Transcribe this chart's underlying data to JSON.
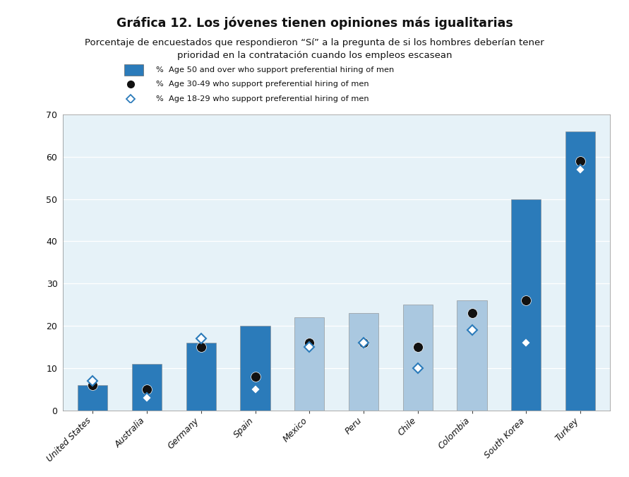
{
  "title": "Gráfica 12. Los jóvenes tienen opiniones más igualitarias",
  "subtitle_line1": "Porcentaje de encuestados que respondieron “Sí” a la pregunta de si los hombres deberían tener",
  "subtitle_line2": "prioridad en la contratación cuando los empleos escasean",
  "categories": [
    "United States",
    "Australia",
    "Germany",
    "Spain",
    "Mexico",
    "Peru",
    "Chile",
    "Colombia",
    "South Korea",
    "Turkey"
  ],
  "bar_values_50plus": [
    6,
    11,
    16,
    20,
    22,
    23,
    25,
    26,
    50,
    66
  ],
  "dot_values_3049": [
    6,
    5,
    15,
    8,
    16,
    16,
    15,
    23,
    26,
    59
  ],
  "diamond_values_1829": [
    7,
    3,
    17,
    5,
    15,
    16,
    10,
    19,
    16,
    57
  ],
  "bar_colors": [
    "#2b7bba",
    "#2b7bba",
    "#2b7bba",
    "#2b7bba",
    "#aac8e0",
    "#aac8e0",
    "#aac8e0",
    "#aac8e0",
    "#2b7bba",
    "#2b7bba"
  ],
  "ylim": [
    0,
    70
  ],
  "yticks": [
    0,
    10,
    20,
    30,
    40,
    50,
    60,
    70
  ],
  "legend_label_bar": "%  Age 50 and over who support preferential hiring of men",
  "legend_label_dot": "%  Age 30-49 who support preferential hiring of men",
  "legend_label_diamond": "%  Age 18-29 who support preferential hiring of men",
  "bar_dark_color": "#2b7bba",
  "dot_color": "#111111",
  "diamond_edge_color": "#2b7bba",
  "chart_bg": "#e6f2f8",
  "legend_bg": "#e0e0e0",
  "text_color": "#111111",
  "grid_color": "#ffffff",
  "axis_color": "#444444"
}
